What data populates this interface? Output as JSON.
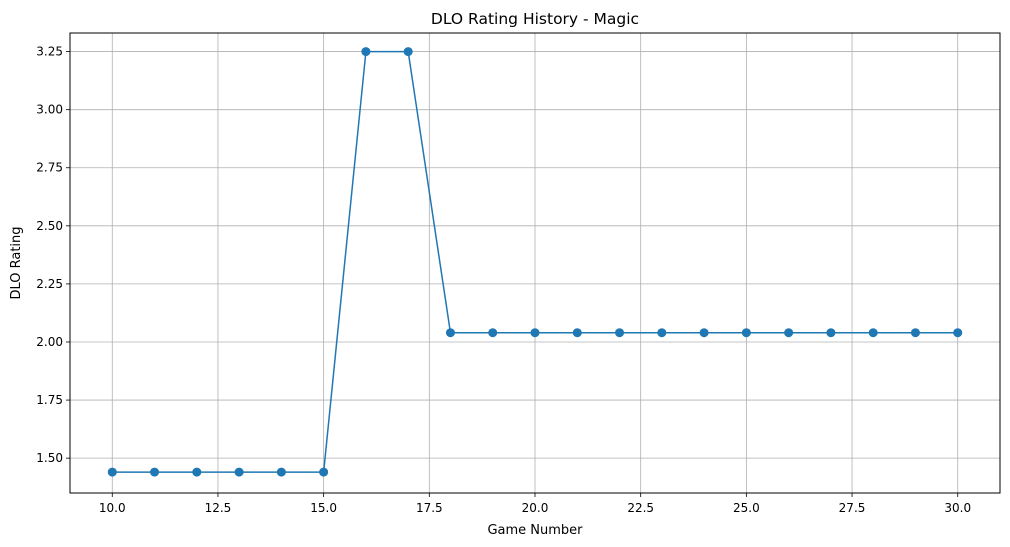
{
  "chart_data": {
    "type": "line",
    "title": "DLO Rating History - Magic",
    "xlabel": "Game Number",
    "ylabel": "DLO Rating",
    "xlim": [
      9.0,
      31.0
    ],
    "ylim": [
      1.35,
      3.33
    ],
    "grid": true,
    "x_ticks": [
      10.0,
      12.5,
      15.0,
      17.5,
      20.0,
      22.5,
      25.0,
      27.5,
      30.0
    ],
    "x_tick_labels": [
      "10.0",
      "12.5",
      "15.0",
      "17.5",
      "20.0",
      "22.5",
      "25.0",
      "27.5",
      "30.0"
    ],
    "y_ticks": [
      1.5,
      1.75,
      2.0,
      2.25,
      2.5,
      2.75,
      3.0,
      3.25
    ],
    "y_tick_labels": [
      "1.50",
      "1.75",
      "2.00",
      "2.25",
      "2.50",
      "2.75",
      "3.00",
      "3.25"
    ],
    "series": [
      {
        "color": "#1f77b4",
        "marker": "circle",
        "x": [
          10,
          11,
          12,
          13,
          14,
          15,
          16,
          17,
          18,
          19,
          20,
          21,
          22,
          23,
          24,
          25,
          26,
          27,
          28,
          29,
          30
        ],
        "y": [
          1.44,
          1.44,
          1.44,
          1.44,
          1.44,
          1.44,
          3.25,
          3.25,
          2.04,
          2.04,
          2.04,
          2.04,
          2.04,
          2.04,
          2.04,
          2.04,
          2.04,
          2.04,
          2.04,
          2.04,
          2.04
        ]
      }
    ]
  }
}
